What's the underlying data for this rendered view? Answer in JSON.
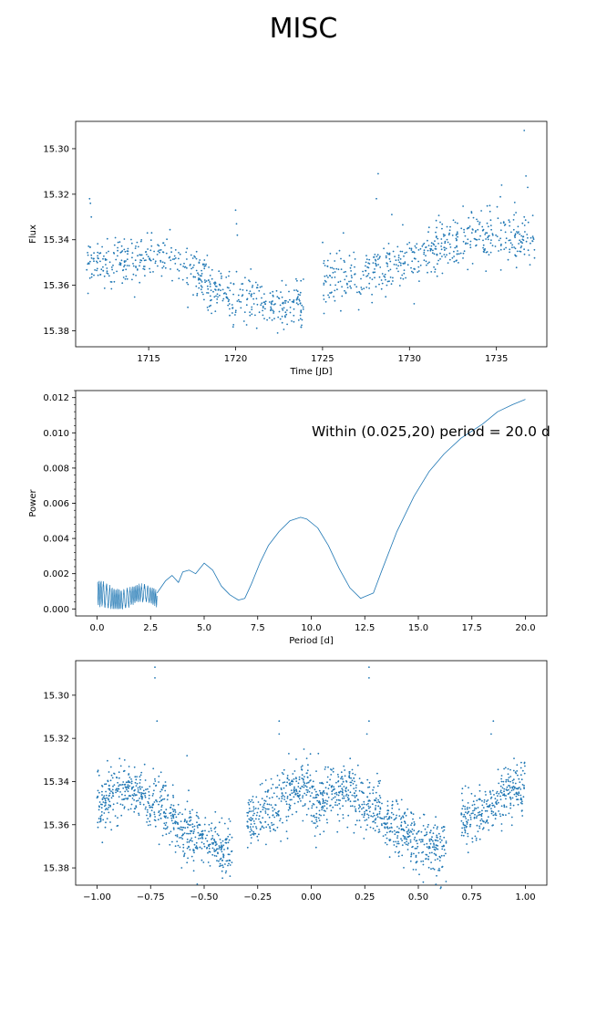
{
  "figure": {
    "title": "MISC"
  },
  "colors": {
    "series": "#1f77b4",
    "axis": "#000000"
  },
  "chart_data": [
    {
      "type": "scatter",
      "xlabel": "Time [JD]",
      "ylabel": "Flux",
      "xlim": [
        1710.8,
        1737.9
      ],
      "ylim": [
        15.288,
        15.387
      ],
      "y_inverted": true,
      "xticks": [
        1715,
        1720,
        1725,
        1730,
        1735
      ],
      "xtick_labels": [
        "1715",
        "1720",
        "1725",
        "1730",
        "1735"
      ],
      "yticks": [
        15.3,
        15.32,
        15.34,
        15.36,
        15.38
      ],
      "ytick_labels": [
        "15.30",
        "15.32",
        "15.34",
        "15.36",
        "15.38"
      ],
      "series": [
        {
          "trend": [
            [
              1711.4,
              15.352
            ],
            [
              1714.0,
              15.349
            ],
            [
              1715.8,
              15.346
            ],
            [
              1717.5,
              15.353
            ],
            [
              1719.0,
              15.362
            ],
            [
              1720.5,
              15.366
            ],
            [
              1722.0,
              15.369
            ],
            [
              1723.7,
              15.369
            ],
            [
              1725.2,
              15.356
            ],
            [
              1727.0,
              15.357
            ],
            [
              1729.0,
              15.351
            ],
            [
              1731.0,
              15.345
            ],
            [
              1733.0,
              15.338
            ],
            [
              1735.0,
              15.337
            ],
            [
              1737.2,
              15.341
            ]
          ],
          "n_points": 1100,
          "scatter_sd": 0.0055,
          "notable_points": [
            [
              1711.6,
              15.322
            ],
            [
              1711.65,
              15.324
            ],
            [
              1711.7,
              15.33
            ],
            [
              1720.0,
              15.327
            ],
            [
              1720.05,
              15.333
            ],
            [
              1720.1,
              15.338
            ],
            [
              1722.4,
              15.365
            ],
            [
              1728.2,
              15.311
            ],
            [
              1728.1,
              15.322
            ],
            [
              1726.2,
              15.337
            ],
            [
              1736.6,
              15.292
            ],
            [
              1736.7,
              15.312
            ],
            [
              1736.8,
              15.317
            ],
            [
              1735.3,
              15.316
            ]
          ]
        }
      ],
      "gaps": [
        [
          1723.9,
          1725.0
        ]
      ]
    },
    {
      "type": "line",
      "xlabel": "Period [d]",
      "ylabel": "Power",
      "xlim": [
        -1.0,
        21.0
      ],
      "ylim": [
        -0.0004,
        0.0124
      ],
      "xticks": [
        0.0,
        2.5,
        5.0,
        7.5,
        10.0,
        12.5,
        15.0,
        17.5,
        20.0
      ],
      "xtick_labels": [
        "0.0",
        "2.5",
        "5.0",
        "7.5",
        "10.0",
        "12.5",
        "15.0",
        "17.5",
        "20.0"
      ],
      "yticks": [
        0.0,
        0.002,
        0.004,
        0.006,
        0.008,
        0.01,
        0.012
      ],
      "ytick_labels": [
        "0.000",
        "0.002",
        "0.004",
        "0.006",
        "0.008",
        "0.010",
        "0.012"
      ],
      "annotation": "Within (0.025,20) period = 20.0 d",
      "series": [
        {
          "x": [
            0.025,
            1.0,
            2.0,
            2.8,
            3.2,
            3.5,
            3.8,
            4.0,
            4.3,
            4.6,
            5.0,
            5.4,
            5.8,
            6.2,
            6.6,
            6.9,
            7.2,
            7.6,
            8.0,
            8.5,
            9.0,
            9.5,
            9.8,
            10.3,
            10.8,
            11.3,
            11.8,
            12.3,
            12.5,
            12.9,
            13.3,
            14.0,
            14.8,
            15.5,
            16.2,
            17.0,
            18.0,
            18.7,
            19.4,
            20.0
          ],
          "y": [
            0.0009,
            0.0008,
            0.0007,
            0.0009,
            0.0016,
            0.0019,
            0.0015,
            0.0021,
            0.0022,
            0.002,
            0.0026,
            0.0022,
            0.0013,
            0.0008,
            0.0005,
            0.0006,
            0.0014,
            0.0026,
            0.0036,
            0.0044,
            0.005,
            0.0052,
            0.0051,
            0.0046,
            0.0036,
            0.0023,
            0.0012,
            0.0006,
            0.0007,
            0.0009,
            0.0022,
            0.0044,
            0.0064,
            0.0078,
            0.0088,
            0.0097,
            0.0105,
            0.0112,
            0.0116,
            0.0119
          ]
        }
      ]
    },
    {
      "type": "scatter",
      "xlabel": "",
      "ylabel": "",
      "xlim": [
        -1.1,
        1.1
      ],
      "ylim": [
        15.284,
        15.388
      ],
      "y_inverted": true,
      "xticks": [
        -1.0,
        -0.75,
        -0.5,
        -0.25,
        0.0,
        0.25,
        0.5,
        0.75,
        1.0
      ],
      "xtick_labels": [
        "−1.00",
        "−0.75",
        "−0.50",
        "−0.25",
        "0.00",
        "0.25",
        "0.50",
        "0.75",
        "1.00"
      ],
      "yticks": [
        15.3,
        15.32,
        15.34,
        15.36,
        15.38
      ],
      "ytick_labels": [
        "15.30",
        "15.32",
        "15.34",
        "15.36",
        "15.38"
      ],
      "series": [
        {
          "trend": [
            [
              0.0,
              15.351
            ],
            [
              0.1,
              15.344
            ],
            [
              0.2,
              15.346
            ],
            [
              0.3,
              15.352
            ],
            [
              0.4,
              15.362
            ],
            [
              0.5,
              15.368
            ],
            [
              0.63,
              15.372
            ]
          ],
          "trend_gap_2": [
            [
              0.7,
              15.358
            ],
            [
              0.8,
              15.354
            ],
            [
              0.9,
              15.345
            ],
            [
              1.0,
              15.34
            ]
          ],
          "gap": [
            0.63,
            0.7
          ],
          "mirrored_range": [
            -1.0,
            1.0
          ],
          "n_points_per_half": 1000,
          "scatter_sd": 0.0065,
          "notable_points": [
            [
              0.27,
              15.287
            ],
            [
              0.27,
              15.292
            ],
            [
              0.27,
              15.312
            ],
            [
              0.26,
              15.318
            ],
            [
              0.85,
              15.312
            ],
            [
              0.84,
              15.318
            ],
            [
              -0.73,
              15.287
            ],
            [
              -0.73,
              15.292
            ],
            [
              -0.72,
              15.312
            ],
            [
              -0.15,
              15.312
            ],
            [
              -0.15,
              15.318
            ],
            [
              -0.58,
              15.328
            ]
          ]
        }
      ]
    }
  ]
}
